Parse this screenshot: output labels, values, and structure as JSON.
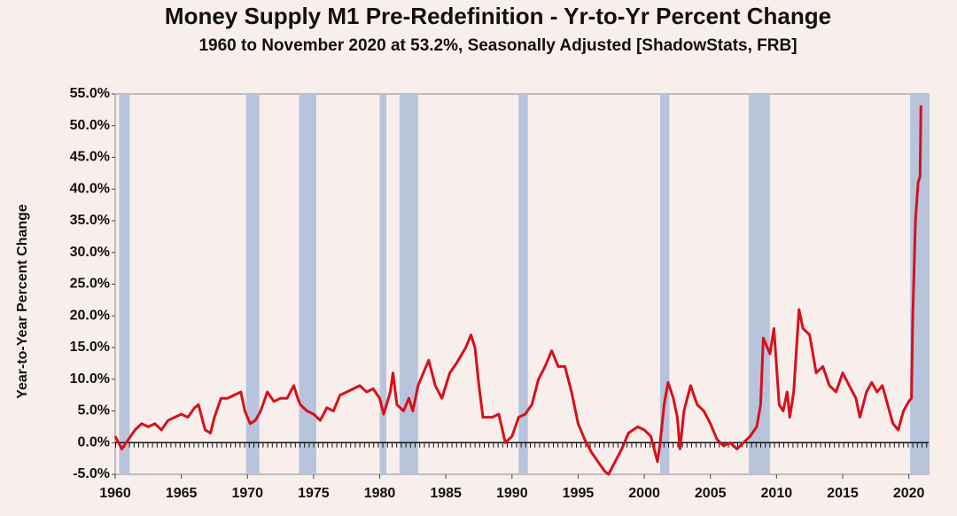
{
  "chart_data": {
    "type": "line",
    "title": "Money Supply M1 Pre-Redefinition -  Yr-to-Yr Percent Change",
    "subtitle": "1960 to November 2020 at 53.2%, Seasonally Adjusted  [ShadowStats, FRB]",
    "y_label": "Year-to-Year Percent Change",
    "color": "#d7101c",
    "recession_color": "#b8c4dc",
    "xlim": [
      1960,
      2021.5
    ],
    "xticks": [
      1960,
      1965,
      1970,
      1975,
      1980,
      1985,
      1990,
      1995,
      2000,
      2005,
      2010,
      2015,
      2020
    ],
    "ylim": [
      -5,
      55
    ],
    "yticks": [
      {
        "value": -5,
        "label": "-5.0%"
      },
      {
        "value": 0,
        "label": "0.0%"
      },
      {
        "value": 5,
        "label": "5.0%"
      },
      {
        "value": 10,
        "label": "10.0%"
      },
      {
        "value": 15,
        "label": "15.0%"
      },
      {
        "value": 20,
        "label": "20.0%"
      },
      {
        "value": 25,
        "label": "25.0%"
      },
      {
        "value": 30,
        "label": "30.0%"
      },
      {
        "value": 35,
        "label": "35.0%"
      },
      {
        "value": 40,
        "label": "40.0%"
      },
      {
        "value": 45,
        "label": "45.0%"
      },
      {
        "value": 50,
        "label": "50.0%"
      },
      {
        "value": 55,
        "label": "55.0%"
      }
    ],
    "recessions": [
      [
        1960.3,
        1961.1
      ],
      [
        1969.9,
        1970.9
      ],
      [
        1973.9,
        1975.2
      ],
      [
        1980.0,
        1980.5
      ],
      [
        1981.5,
        1982.9
      ],
      [
        1990.5,
        1991.2
      ],
      [
        2001.2,
        2001.9
      ],
      [
        2007.9,
        2009.5
      ],
      [
        2020.1,
        2021.5
      ]
    ],
    "x": [
      1960.0,
      1960.5,
      1961.0,
      1961.5,
      1962.0,
      1962.5,
      1963.0,
      1963.5,
      1964.0,
      1964.5,
      1965.0,
      1965.5,
      1966.0,
      1966.3,
      1966.8,
      1967.2,
      1967.5,
      1968.0,
      1968.5,
      1969.0,
      1969.5,
      1969.8,
      1970.2,
      1970.6,
      1971.0,
      1971.5,
      1972.0,
      1972.5,
      1973.0,
      1973.5,
      1973.8,
      1974.0,
      1974.5,
      1975.0,
      1975.5,
      1976.0,
      1976.5,
      1977.0,
      1977.5,
      1978.0,
      1978.5,
      1979.0,
      1979.5,
      1980.0,
      1980.3,
      1980.8,
      1981.0,
      1981.3,
      1981.8,
      1982.2,
      1982.5,
      1982.9,
      1983.3,
      1983.7,
      1984.2,
      1984.7,
      1985.3,
      1985.8,
      1986.5,
      1986.9,
      1987.2,
      1987.5,
      1987.8,
      1988.5,
      1989.0,
      1989.5,
      1990.0,
      1990.5,
      1991.0,
      1991.5,
      1992.0,
      1992.5,
      1993.0,
      1993.5,
      1994.0,
      1994.5,
      1995.0,
      1995.5,
      1996.0,
      1996.5,
      1997.0,
      1997.3,
      1997.8,
      1998.3,
      1998.8,
      1999.5,
      2000.0,
      2000.5,
      2001.0,
      2001.2,
      2001.5,
      2001.8,
      2002.2,
      2002.5,
      2002.7,
      2003.0,
      2003.5,
      2004.0,
      2004.5,
      2005.0,
      2005.5,
      2006.0,
      2006.5,
      2007.0,
      2007.5,
      2008.0,
      2008.5,
      2008.8,
      2009.0,
      2009.5,
      2009.8,
      2010.2,
      2010.5,
      2010.8,
      2011.0,
      2011.3,
      2011.7,
      2012.0,
      2012.5,
      2013.0,
      2013.5,
      2014.0,
      2014.5,
      2015.0,
      2015.5,
      2016.0,
      2016.3,
      2016.8,
      2017.2,
      2017.6,
      2018.0,
      2018.4,
      2018.8,
      2019.2,
      2019.6,
      2020.0,
      2020.2,
      2020.3,
      2020.5,
      2020.7,
      2020.85,
      2020.92
    ],
    "values": [
      1,
      -1,
      0.5,
      2,
      3,
      2.5,
      3,
      2,
      3.5,
      4,
      4.5,
      4,
      5.5,
      6,
      2,
      1.5,
      4,
      7,
      7,
      7.5,
      8,
      5,
      3,
      3.5,
      5,
      8,
      6.5,
      7,
      7,
      9,
      7,
      6,
      5,
      4.5,
      3.5,
      5.5,
      5,
      7.5,
      8,
      8.5,
      9,
      8,
      8.5,
      7,
      4.5,
      8,
      11,
      6,
      5,
      7,
      5,
      9,
      11,
      13,
      9,
      7,
      11,
      12.5,
      15,
      17,
      15,
      9,
      4,
      4,
      4.5,
      0,
      1,
      4,
      4.5,
      6,
      10,
      12,
      14.5,
      12,
      12,
      8,
      3,
      0.5,
      -1.5,
      -3,
      -4.5,
      -5,
      -3,
      -1,
      1.5,
      2.5,
      2,
      1,
      -3,
      0,
      6,
      9.5,
      7,
      4,
      -1,
      5,
      9,
      6,
      5,
      3,
      0.5,
      -0.5,
      0,
      -1,
      0,
      1,
      2.5,
      6,
      16.5,
      14,
      18,
      6,
      5,
      8,
      4,
      8,
      21,
      18,
      17,
      11,
      12,
      9,
      8,
      11,
      9,
      7,
      4,
      8,
      9.5,
      8,
      9,
      6,
      3,
      2,
      5,
      6.5,
      7,
      20,
      35,
      41,
      42,
      53.2
    ]
  }
}
